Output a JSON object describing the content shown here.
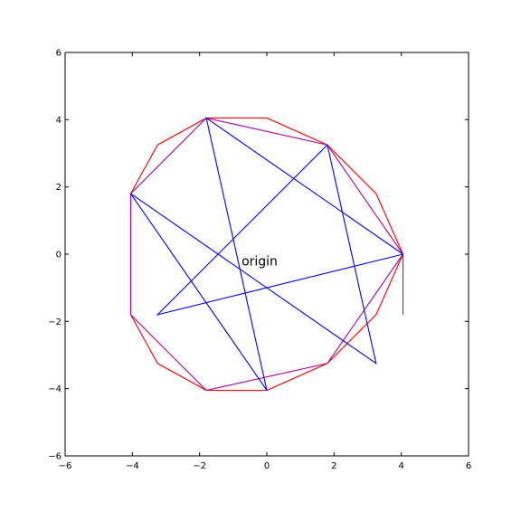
{
  "chart_data": {
    "type": "line",
    "title": "",
    "xlabel": "",
    "ylabel": "",
    "xlim": [
      -6,
      6
    ],
    "ylim": [
      -6,
      6
    ],
    "xticks": [
      -6,
      -4,
      -2,
      0,
      2,
      4,
      6
    ],
    "yticks": [
      -6,
      -4,
      -2,
      0,
      2,
      4,
      6
    ],
    "xtick_labels": [
      "−6",
      "−4",
      "−2",
      "0",
      "2",
      "4",
      "6"
    ],
    "ytick_labels": [
      "−6",
      "−4",
      "−2",
      "0",
      "2",
      "4",
      "6"
    ],
    "grid": false,
    "legend": "none",
    "annotation": {
      "text": "origin",
      "x": 0,
      "y": -0.2
    },
    "series": [
      {
        "color": "#ff0000",
        "x": [
          4.05,
          3.25,
          1.8,
          0.0,
          -1.8,
          -3.25,
          -4.05,
          -4.05,
          -3.25,
          -1.8,
          0.0,
          1.8,
          3.25,
          4.05,
          4.05
        ],
        "y": [
          0.0,
          -1.8,
          -3.25,
          -4.05,
          -4.05,
          -3.25,
          -1.8,
          1.8,
          3.25,
          4.05,
          4.05,
          3.25,
          1.8,
          0.0,
          -1.8
        ],
        "closed": true
      },
      {
        "color": "#aa00aa",
        "x": [
          4.05,
          1.8,
          -1.8,
          -4.05,
          -4.05,
          -1.8,
          1.8,
          4.05
        ],
        "y": [
          0.0,
          3.25,
          4.05,
          1.8,
          -1.8,
          -4.05,
          -3.25,
          0.0
        ],
        "closed": false
      },
      {
        "color": "#0000ff",
        "x": [
          4.05,
          -1.8,
          0.0,
          -4.05,
          3.25,
          1.8,
          -3.25,
          4.05
        ],
        "y": [
          0.0,
          4.05,
          -4.05,
          1.8,
          -3.25,
          3.25,
          -1.8,
          0.0
        ],
        "closed": false
      }
    ]
  }
}
